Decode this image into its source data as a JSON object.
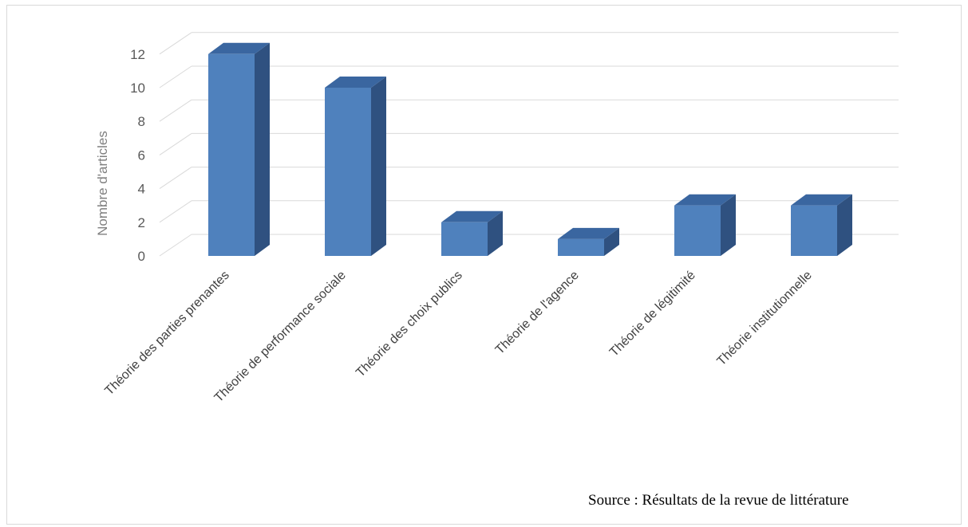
{
  "chart_data": {
    "type": "bar",
    "style": "3d-column",
    "categories": [
      "Théorie des parties prenantes",
      "Théorie de performance sociale",
      "Théorie des choix publics",
      "Théorie de l'agence",
      "Théorie de légitimité",
      "Théorie institutionnelle"
    ],
    "values": [
      12,
      10,
      2,
      1,
      3,
      3
    ],
    "title": "",
    "xlabel": "",
    "ylabel": "Nombre d'articles",
    "ylim": [
      0,
      12
    ],
    "yticks": [
      0,
      2,
      4,
      6,
      8,
      10,
      12
    ],
    "grid": true,
    "legend": "none",
    "colors": {
      "front": "#4f81bd",
      "side": "#2f5180",
      "top": "#3a66a0",
      "grid": "#d9d9d9"
    }
  },
  "source": "Source : Résultats de la revue de littérature"
}
